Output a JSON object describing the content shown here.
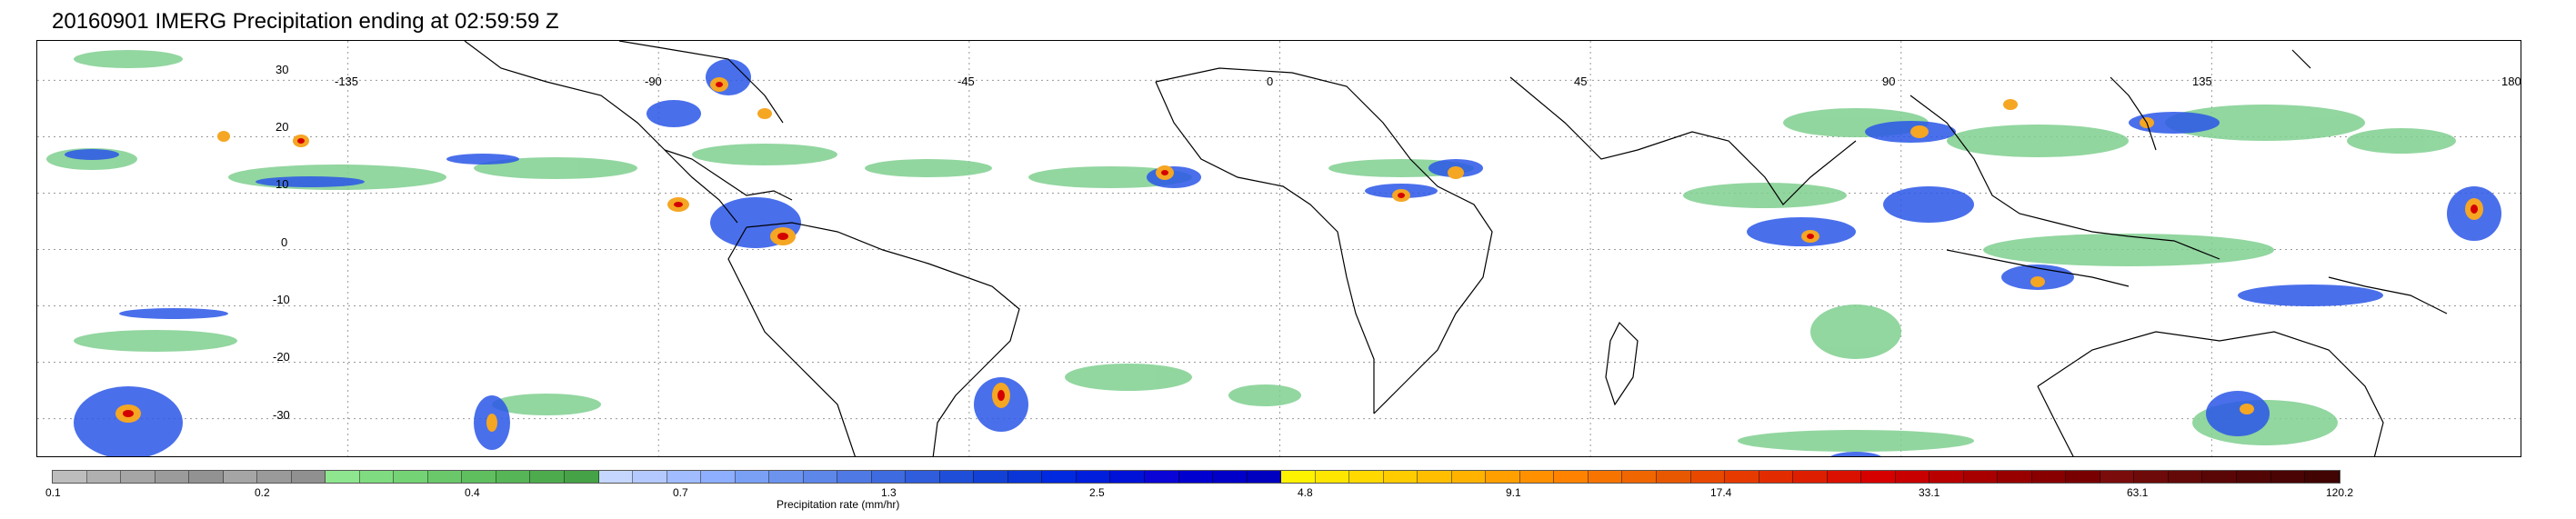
{
  "title": "20160901 IMERG Precipitation ending at 02:59:59 Z",
  "map": {
    "lon_labels": [
      "-135",
      "-90",
      "-45",
      "0",
      "45",
      "90",
      "135",
      "180"
    ],
    "lat_labels": [
      "30",
      "20",
      "10",
      "0",
      "-10",
      "-20",
      "-30"
    ],
    "lon_range": [
      -180,
      180
    ],
    "lat_range": [
      -37,
      37
    ],
    "gridlines": "dotted"
  },
  "colorbar": {
    "label": "Precipitation rate (mm/hr)",
    "ticks": [
      "0.1",
      "0.2",
      "0.4",
      "0.7",
      "1.3",
      "2.5",
      "4.8",
      "9.1",
      "17.4",
      "33.1",
      "63.1",
      "120.2"
    ],
    "colors": [
      "#bdbdbd",
      "#b0b0b0",
      "#a5a5a5",
      "#9b9b9b",
      "#929292",
      "#a5a5a5",
      "#9a9a9a",
      "#909090",
      "#8ee68e",
      "#80dc80",
      "#74d374",
      "#6ac86a",
      "#5fbf5f",
      "#56b556",
      "#4dab4d",
      "#46a246",
      "#c6d7ff",
      "#b4c9ff",
      "#a1bcff",
      "#8eaeff",
      "#7aa0f5",
      "#6c94ef",
      "#5e87ea",
      "#4f79e4",
      "#3f6be0",
      "#2f5ddc",
      "#1f4fd8",
      "#1341d6",
      "#0a36d8",
      "#0029e0",
      "#001edc",
      "#0012d8",
      "#0a05d6",
      "#0000d0",
      "#0000c8",
      "#0000c0",
      "#fff200",
      "#ffe600",
      "#ffd900",
      "#ffcc00",
      "#ffbf00",
      "#ffb300",
      "#ff9f00",
      "#ff9000",
      "#ff8200",
      "#f77400",
      "#f06600",
      "#e85800",
      "#e84800",
      "#e63a00",
      "#e22c00",
      "#de1e00",
      "#da1000",
      "#d60000",
      "#c80000",
      "#b80000",
      "#a80000",
      "#980000",
      "#880000",
      "#780000",
      "#7a0c0c",
      "#6e0a0a",
      "#640808",
      "#5a0606",
      "#520505",
      "#4a0404",
      "#420303"
    ]
  }
}
